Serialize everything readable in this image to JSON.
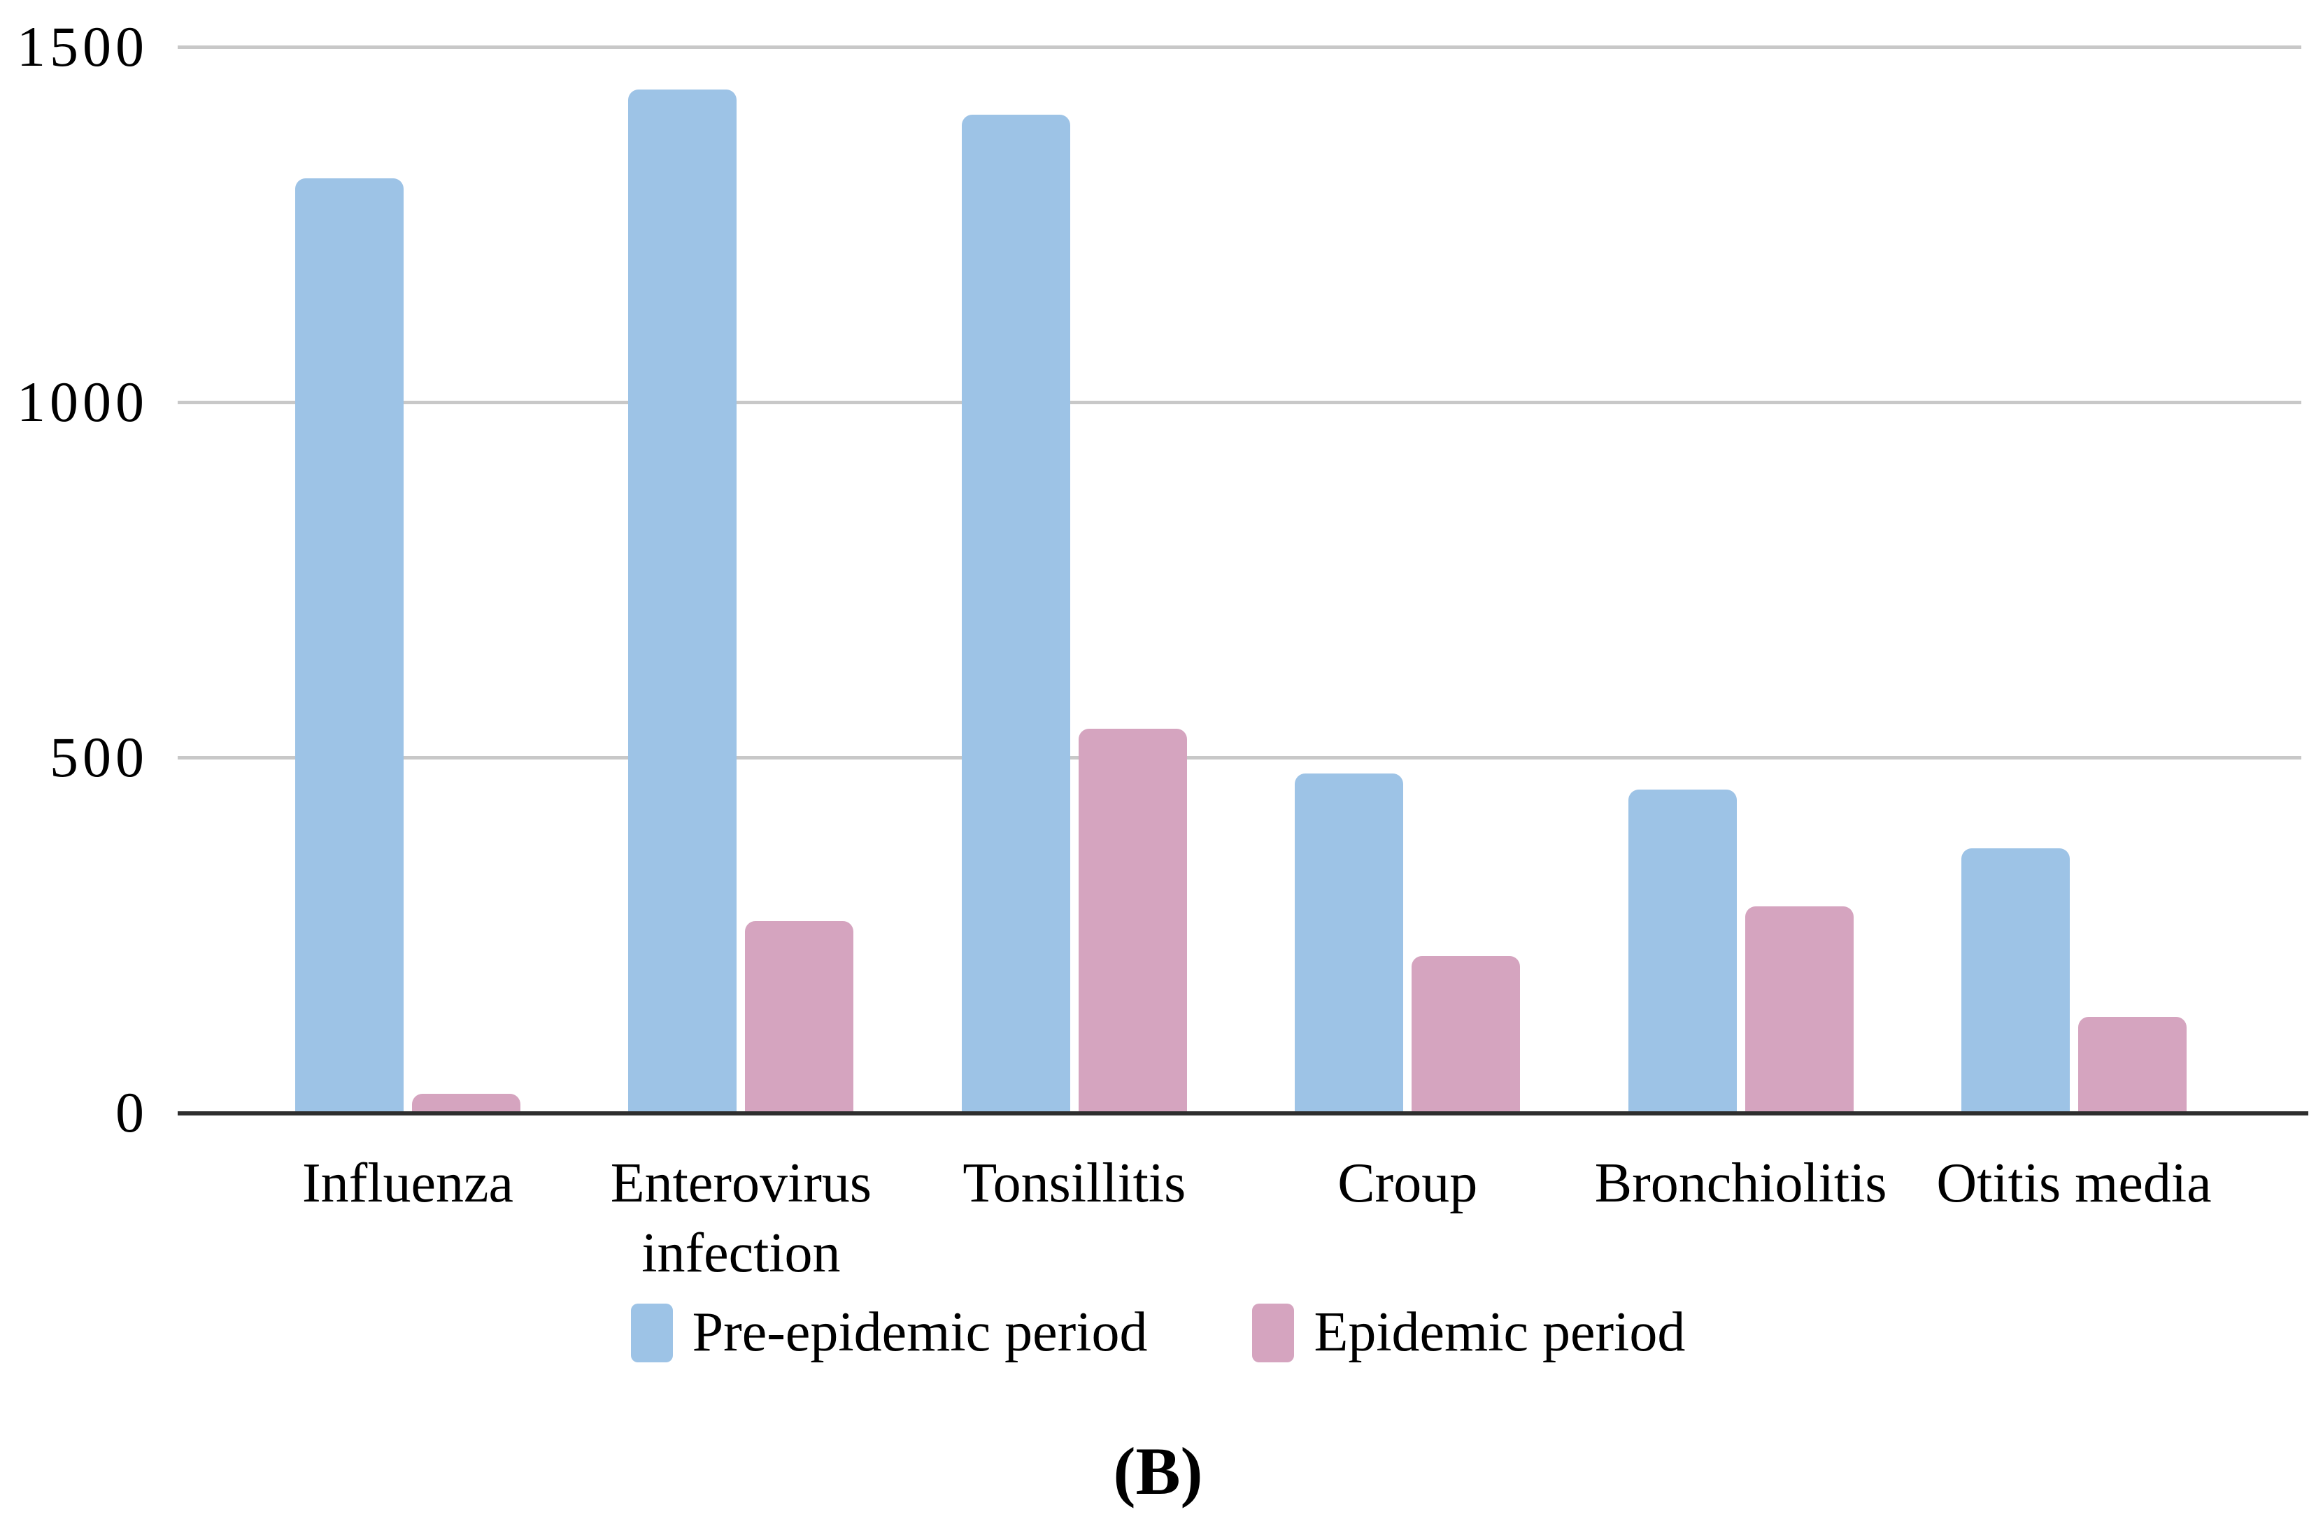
{
  "figure": {
    "caption": "(B)",
    "background": "#FFFFFF"
  },
  "chart_data": {
    "type": "bar",
    "title": "",
    "xlabel": "",
    "ylabel": "",
    "categories": [
      "Influenza",
      "Enterovirus\ninfection",
      "Tonsillitis",
      "Croup",
      "Bronchiolitis",
      "Otitis media"
    ],
    "series": [
      {
        "name": "Pre-epidemic period",
        "color": "#9DC3E6",
        "values": [
          1315,
          1440,
          1405,
          477,
          455,
          372
        ]
      },
      {
        "name": "Epidemic period",
        "color": "#D5A4BF",
        "values": [
          27,
          270,
          540,
          220,
          290,
          135
        ]
      }
    ],
    "ylim": [
      0,
      1500
    ],
    "yticks": [
      0,
      500,
      1000,
      1500
    ],
    "grid": true,
    "legend_position": "bottom"
  },
  "style": {
    "grid_color": "#C8C8C8",
    "axis_color": "#2E2E2E",
    "text_color": "#000000"
  }
}
